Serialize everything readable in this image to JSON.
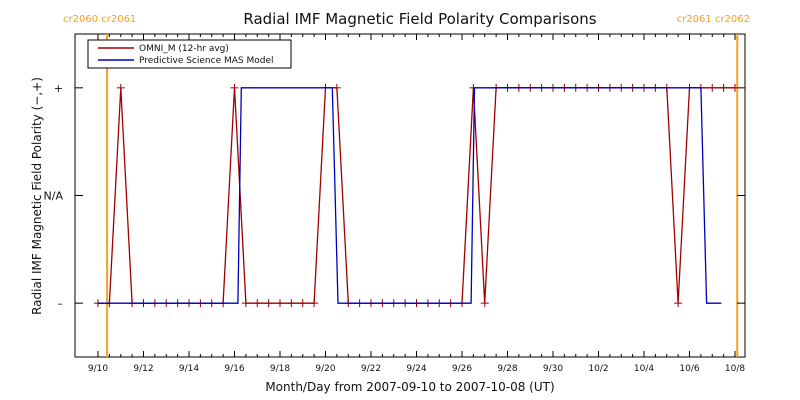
{
  "chart_data": {
    "type": "line",
    "title": "Radial IMF Magnetic Field Polarity Comparisons",
    "xlabel": "Month/Day from 2007-09-10 to 2007-10-08 (UT)",
    "ylabel": "Radial IMF Magnetic Field Polarity (−,+)",
    "x_start": "2007-09-10",
    "xlim_days": [
      0,
      28
    ],
    "x_ticks": [
      {
        "day": 0,
        "label": "9/10"
      },
      {
        "day": 2,
        "label": "9/12"
      },
      {
        "day": 4,
        "label": "9/14"
      },
      {
        "day": 6,
        "label": "9/16"
      },
      {
        "day": 8,
        "label": "9/18"
      },
      {
        "day": 10,
        "label": "9/20"
      },
      {
        "day": 12,
        "label": "9/22"
      },
      {
        "day": 14,
        "label": "9/24"
      },
      {
        "day": 16,
        "label": "9/26"
      },
      {
        "day": 18,
        "label": "9/28"
      },
      {
        "day": 20,
        "label": "9/30"
      },
      {
        "day": 22,
        "label": "10/2"
      },
      {
        "day": 24,
        "label": "10/4"
      },
      {
        "day": 26,
        "label": "10/6"
      },
      {
        "day": 28,
        "label": "10/8"
      }
    ],
    "ylim": [
      -1.5,
      1.5
    ],
    "y_ticks": [
      {
        "value": 1,
        "label": "+"
      },
      {
        "value": 0,
        "label": "N/A"
      },
      {
        "value": -1,
        "label": "–"
      }
    ],
    "grid": false,
    "legend_position": "top-left",
    "carrington_markers": [
      {
        "day": 0.4,
        "label": "cr2060 cr2061",
        "side": "left"
      },
      {
        "day": 28.1,
        "label": "cr2061 cr2062",
        "side": "right"
      }
    ],
    "series": [
      {
        "name": "OMNI_M (12-hr avg)",
        "color": "#a00000",
        "markers": true,
        "x": [
          0,
          0.5,
          1.0,
          1.5,
          2.0,
          2.5,
          3.0,
          3.5,
          4.0,
          4.5,
          5.0,
          5.5,
          6.0,
          6.5,
          7.0,
          7.5,
          8.0,
          8.5,
          9.0,
          9.5,
          10.0,
          10.5,
          11.0,
          11.5,
          12.0,
          12.5,
          13.0,
          13.5,
          14.0,
          14.5,
          15.0,
          15.5,
          16.0,
          16.5,
          17.0,
          17.5,
          18.0,
          18.5,
          19.0,
          19.5,
          20.0,
          20.5,
          21.0,
          21.5,
          22.0,
          22.5,
          23.0,
          23.5,
          24.0,
          24.5,
          25.0,
          25.5,
          26.0,
          26.5,
          27.0,
          27.5,
          28.0
        ],
        "y": [
          -1,
          -1,
          1,
          -1,
          -1,
          -1,
          -1,
          -1,
          -1,
          -1,
          -1,
          -1,
          1,
          -1,
          -1,
          -1,
          -1,
          -1,
          -1,
          -1,
          1,
          1,
          -1,
          -1,
          -1,
          -1,
          -1,
          -1,
          -1,
          -1,
          -1,
          -1,
          -1,
          1,
          -1,
          1,
          1,
          1,
          1,
          1,
          1,
          1,
          1,
          1,
          1,
          1,
          1,
          1,
          1,
          1,
          1,
          -1,
          1,
          1,
          1,
          1,
          1
        ]
      },
      {
        "name": "Predictive Science MAS Model",
        "color": "#0000c0",
        "markers": false,
        "x": [
          0,
          6.15,
          6.3,
          10.3,
          10.55,
          16.4,
          16.55,
          26.5,
          26.75,
          27.4
        ],
        "y": [
          -1,
          -1,
          1,
          1,
          -1,
          -1,
          1,
          1,
          -1,
          -1
        ]
      }
    ]
  }
}
